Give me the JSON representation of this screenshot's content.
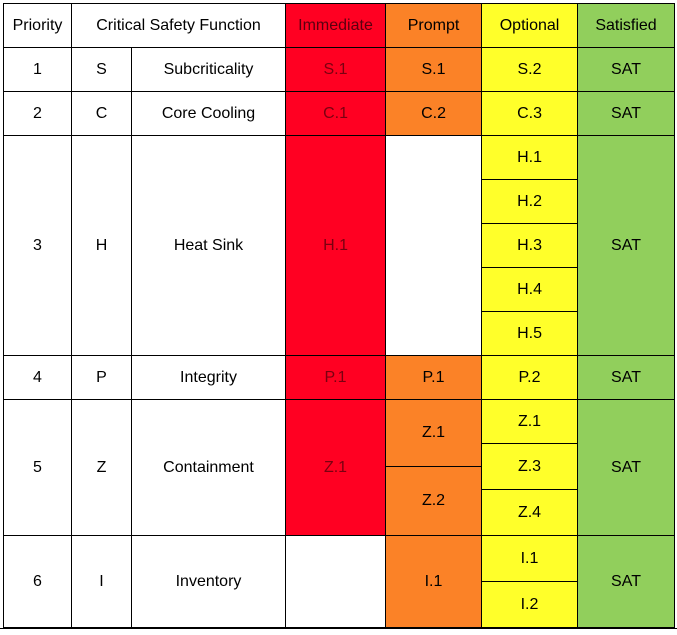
{
  "headers": {
    "priority": "Priority",
    "csf": "Critical Safety Function",
    "immediate": "Immediate",
    "prompt": "Prompt",
    "optional": "Optional",
    "satisfied": "Satisfied"
  },
  "colors": {
    "immediate": "#ff0022",
    "prompt": "#fb8227",
    "optional": "#ffff2a",
    "satisfied": "#91cf5c"
  },
  "rows": [
    {
      "priority": "1",
      "code": "S",
      "name": "Subcriticality",
      "immediate": [
        "S.1"
      ],
      "prompt": [
        "S.1"
      ],
      "optional": [
        "S.2"
      ],
      "satisfied": "SAT"
    },
    {
      "priority": "2",
      "code": "C",
      "name": "Core Cooling",
      "immediate": [
        "C.1"
      ],
      "prompt": [
        "C.2"
      ],
      "optional": [
        "C.3"
      ],
      "satisfied": "SAT"
    },
    {
      "priority": "3",
      "code": "H",
      "name": "Heat Sink",
      "immediate": [
        "H.1"
      ],
      "prompt": [],
      "optional": [
        "H.1",
        "H.2",
        "H.3",
        "H.4",
        "H.5"
      ],
      "satisfied": "SAT"
    },
    {
      "priority": "4",
      "code": "P",
      "name": "Integrity",
      "immediate": [
        "P.1"
      ],
      "prompt": [
        "P.1"
      ],
      "optional": [
        "P.2"
      ],
      "satisfied": "SAT"
    },
    {
      "priority": "5",
      "code": "Z",
      "name": "Containment",
      "immediate": [
        "Z.1"
      ],
      "prompt": [
        "Z.1",
        "Z.2"
      ],
      "optional": [
        "Z.1",
        "Z.3",
        "Z.4"
      ],
      "satisfied": "SAT"
    },
    {
      "priority": "6",
      "code": "I",
      "name": "Inventory",
      "immediate": [],
      "prompt": [
        "I.1"
      ],
      "optional": [
        "I.1",
        "I.2"
      ],
      "satisfied": "SAT"
    }
  ]
}
